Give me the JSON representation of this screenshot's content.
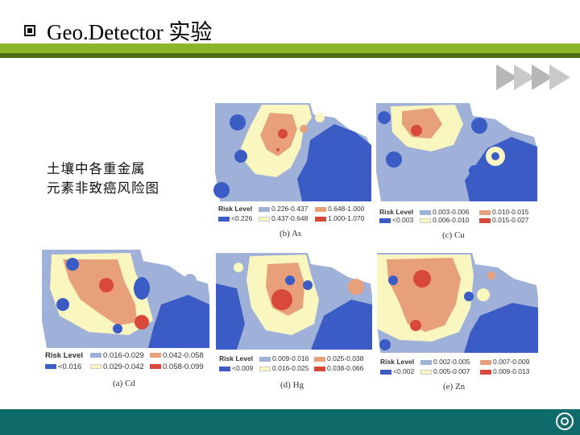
{
  "title": "Geo.Detector 实验",
  "caption": {
    "line1": "土壤中各重金属",
    "line2": "元素非致癌风险图"
  },
  "panels": [
    {
      "label": "(b) As",
      "legend_title": "Risk Level",
      "items": [
        {
          "text": "<0.226",
          "color": "#3b5cc4"
        },
        {
          "text": "0.226-0.437",
          "color": "#9fb1d8"
        },
        {
          "text": "0.437-0.648",
          "color": "#faf6c0"
        },
        {
          "text": "0.648-1.000",
          "color": "#e8a07a"
        },
        {
          "text": "1.000-1.070",
          "color": "#d9493a"
        }
      ]
    },
    {
      "label": "(c) Cu",
      "legend_title": "Risk Level",
      "items": [
        {
          "text": "<0.003",
          "color": "#3b5cc4"
        },
        {
          "text": "0.003-0.006",
          "color": "#9fb1d8"
        },
        {
          "text": "0.006-0.010",
          "color": "#faf6c0"
        },
        {
          "text": "0.010-0.015",
          "color": "#e8a07a"
        },
        {
          "text": "0.015-0.027",
          "color": "#d9493a"
        }
      ]
    },
    {
      "label": "(a) Cd",
      "legend_title": "Risk Level",
      "items": [
        {
          "text": "<0.016",
          "color": "#3b5cc4"
        },
        {
          "text": "0.016-0.029",
          "color": "#9fb1d8"
        },
        {
          "text": "0.029-0.042",
          "color": "#faf6c0"
        },
        {
          "text": "0.042-0.058",
          "color": "#e8a07a"
        },
        {
          "text": "0.058-0.099",
          "color": "#d9493a"
        }
      ]
    },
    {
      "label": "(d) Hg",
      "legend_title": "Risk Level",
      "items": [
        {
          "text": "<0.009",
          "color": "#3b5cc4"
        },
        {
          "text": "0.009-0.016",
          "color": "#9fb1d8"
        },
        {
          "text": "0.016-0.025",
          "color": "#faf6c0"
        },
        {
          "text": "0.025-0.038",
          "color": "#e8a07a"
        },
        {
          "text": "0.038-0.066",
          "color": "#d9493a"
        }
      ]
    },
    {
      "label": "(e) Zn",
      "legend_title": "Risk Level",
      "items": [
        {
          "text": "<0.002",
          "color": "#3b5cc4"
        },
        {
          "text": "0.002-0.005",
          "color": "#9fb1d8"
        },
        {
          "text": "0.005-0.007",
          "color": "#faf6c0"
        },
        {
          "text": "0.007-0.009",
          "color": "#e8a07a"
        },
        {
          "text": "0.009-0.013",
          "color": "#d9493a"
        }
      ]
    }
  ],
  "colors": {
    "accent": "#8db52a",
    "accent_dark": "#4f6d14",
    "footer": "#0f6a6a"
  }
}
